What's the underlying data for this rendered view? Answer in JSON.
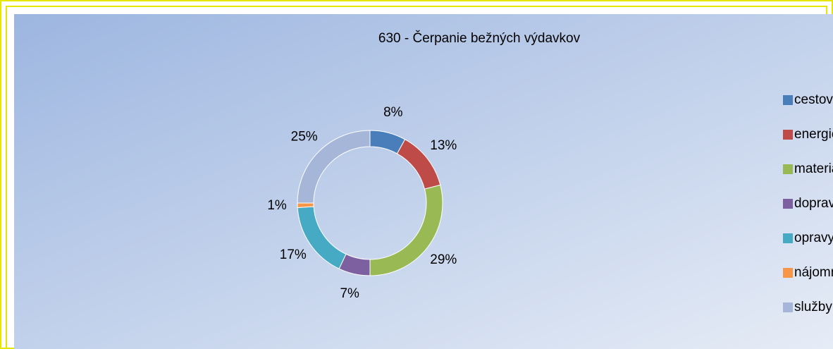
{
  "chart_data": {
    "type": "donut",
    "title": "630 - Čerpanie bežných výdavkov",
    "categories": [
      "cestovné",
      "energie",
      "materiál",
      "dopravné",
      "opravy",
      "nájomné",
      "služby"
    ],
    "values": [
      8,
      13,
      29,
      7,
      17,
      1,
      25
    ],
    "value_labels": [
      "8%",
      "13%",
      "29%",
      "7%",
      "17%",
      "1%",
      "25%"
    ],
    "colors": [
      "#4a7ebb",
      "#be4b48",
      "#98b954",
      "#7d60a0",
      "#46aac5",
      "#f79646",
      "#a5b6d9"
    ],
    "legend": "right"
  }
}
